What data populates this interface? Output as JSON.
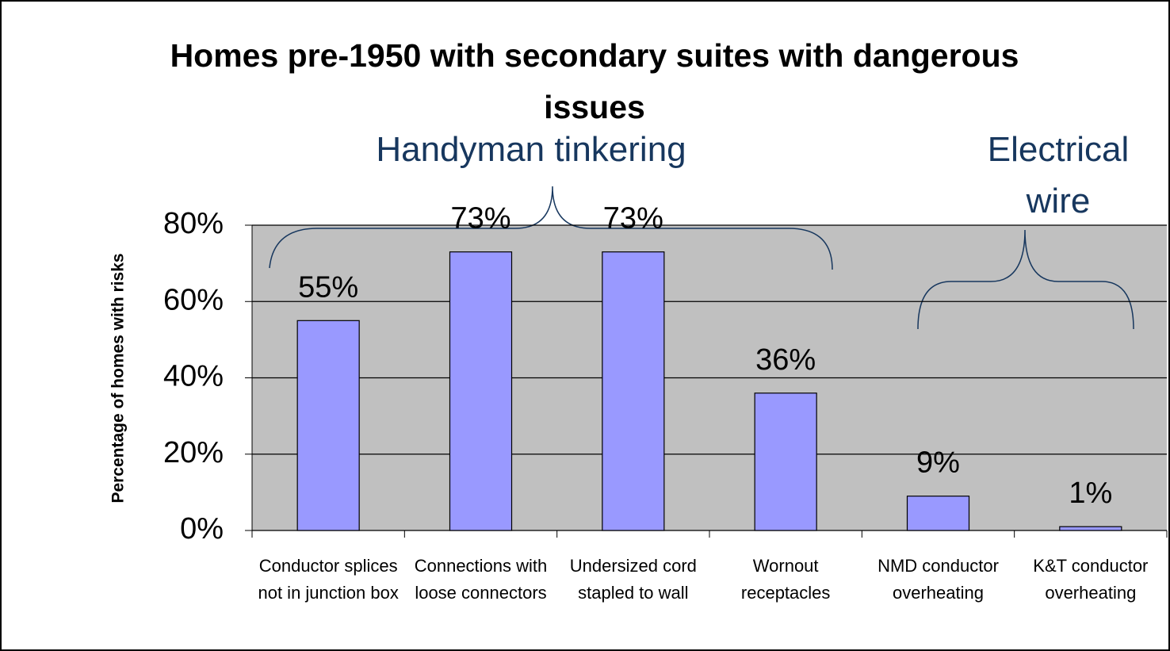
{
  "chart_data": {
    "type": "bar",
    "title": "Homes pre-1950 with secondary suites with dangerous issues",
    "ylabel": "Percentage of homes with risks",
    "annotations": [
      "Handyman tinkering",
      "Electrical wire"
    ],
    "categories": [
      "Conductor splices not in junction box",
      "Connections with loose connectors",
      "Undersized cord stapled to wall",
      "Wornout receptacles",
      "NMD conductor overheating",
      "K&T conductor overheating"
    ],
    "values": [
      55,
      73,
      73,
      36,
      9,
      1
    ],
    "value_labels": [
      "55%",
      "73%",
      "73%",
      "36%",
      "9%",
      "1%"
    ],
    "color": "#9999ff",
    "ylim": [
      0,
      80
    ],
    "yticks": [
      {
        "value": 0,
        "label": "0%"
      },
      {
        "value": 20,
        "label": "20%"
      },
      {
        "value": 40,
        "label": "40%"
      },
      {
        "value": 60,
        "label": "60%"
      },
      {
        "value": 80,
        "label": "80%"
      }
    ],
    "grid": true
  }
}
